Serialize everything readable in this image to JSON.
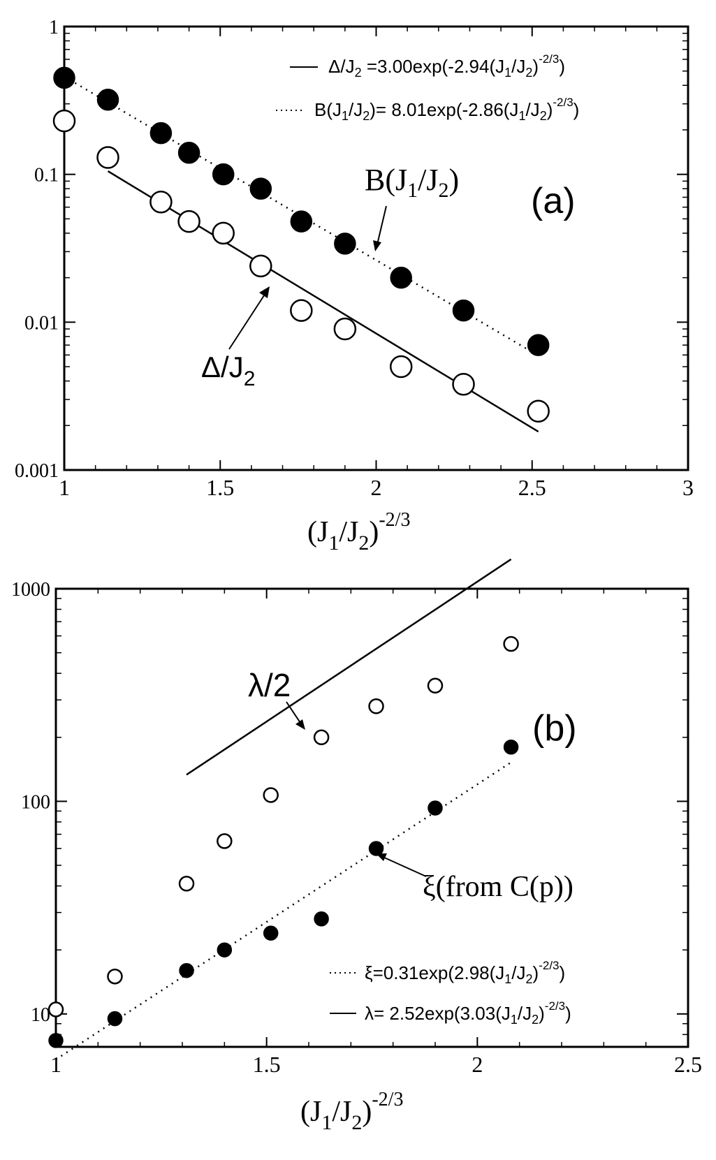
{
  "chart_data": [
    {
      "type": "scatter",
      "panel_label": "(a)",
      "xlabel": "(J1/J2)^-2/3",
      "ylabel": "",
      "xlim": [
        1,
        3
      ],
      "ylim": [
        0.001,
        1
      ],
      "y_scale": "log",
      "x_ticks": [
        "1",
        "1.5",
        "2",
        "2.5",
        "3"
      ],
      "y_ticks": [
        "0.001",
        "0.01",
        "0.1",
        "1"
      ],
      "legend_position": "top-right",
      "series": [
        {
          "name": "B(J1/J2)",
          "marker": "filled-circle",
          "x": [
            1.0,
            1.14,
            1.31,
            1.4,
            1.51,
            1.63,
            1.76,
            1.9,
            2.08,
            2.28,
            2.52
          ],
          "y": [
            0.45,
            0.32,
            0.19,
            0.14,
            0.1,
            0.08,
            0.048,
            0.034,
            0.02,
            0.012,
            0.007
          ]
        },
        {
          "name": "Δ/J2",
          "marker": "open-circle",
          "x": [
            1.0,
            1.14,
            1.31,
            1.4,
            1.51,
            1.63,
            1.76,
            1.9,
            2.08,
            2.28,
            2.52
          ],
          "y": [
            0.23,
            0.13,
            0.065,
            0.048,
            0.04,
            0.024,
            0.012,
            0.009,
            0.005,
            0.0038,
            0.0025
          ]
        }
      ],
      "fits": [
        {
          "series": "Δ/J2",
          "style": "solid",
          "amplitude": 3.0,
          "rate": -2.94,
          "x_range": [
            1.14,
            2.52
          ],
          "legend": {
            "pre": "Δ/J",
            "s1": "2",
            "mid": " =3.00exp(-2.94(J",
            "s2": "1",
            "mid2": "/J",
            "s3": "2",
            "end": ")",
            "sup": "-2/3",
            "close": ")"
          }
        },
        {
          "series": "B(J1/J2)",
          "style": "dotted",
          "amplitude": 8.01,
          "rate": -2.86,
          "x_range": [
            1.0,
            2.52
          ],
          "legend": {
            "pre": "B(J",
            "s1": "1",
            "mid": "/J",
            "s2": "2",
            "mid2": ")= 8.01exp(-2.86(J",
            "s3": "1",
            "mid3": "/J",
            "s4": "2",
            "end": ")",
            "sup": "-2/3",
            "close": ")"
          }
        }
      ],
      "annotations": {
        "B": {
          "pre": "B(J",
          "sub1": "1",
          "mid": "/J",
          "sub2": "2",
          "end": ")"
        },
        "delta": {
          "pre": "Δ/J",
          "sub": "2"
        }
      }
    },
    {
      "type": "scatter",
      "panel_label": "(b)",
      "xlabel": "(J1/J2)^-2/3",
      "ylabel": "",
      "xlim": [
        1,
        2.5
      ],
      "ylim": [
        7,
        1000
      ],
      "y_scale": "log",
      "x_ticks": [
        "1",
        "1.5",
        "2",
        "2.5"
      ],
      "y_ticks": [
        "10",
        "100",
        "1000"
      ],
      "legend_position": "bottom-right",
      "series": [
        {
          "name": "λ/2",
          "marker": "open-circle",
          "x": [
            1.0,
            1.14,
            1.31,
            1.4,
            1.51,
            1.63,
            1.76,
            1.9,
            2.08
          ],
          "y": [
            10.5,
            15,
            41,
            65,
            107,
            200,
            280,
            350,
            550
          ]
        },
        {
          "name": "ξ(from C(p))",
          "marker": "filled-circle",
          "x": [
            1.0,
            1.14,
            1.31,
            1.4,
            1.51,
            1.63,
            1.76,
            1.9,
            2.08
          ],
          "y": [
            7.5,
            9.5,
            16,
            20,
            24,
            28,
            60,
            93,
            180
          ]
        }
      ],
      "fits": [
        {
          "series": "ξ(from C(p))",
          "style": "dotted",
          "amplitude": 0.31,
          "rate": 2.98,
          "x_range": [
            1.0,
            2.08
          ],
          "legend": {
            "pre": "ξ=0.31exp(2.98(J",
            "s1": "1",
            "mid": "/J",
            "s2": "2",
            "end": ")",
            "sup": "-2/3",
            "close": ")"
          }
        },
        {
          "series": "λ/2",
          "style": "solid",
          "amplitude": 2.52,
          "rate": 3.03,
          "x_range": [
            1.31,
            2.08
          ],
          "legend": {
            "pre": "λ= 2.52exp(3.03(J",
            "s1": "1",
            "mid": "/J",
            "s2": "2",
            "end": ")",
            "sup": "-2/3",
            "close": ")"
          }
        }
      ],
      "annotations": {
        "lambda": "λ/2",
        "xi": "ξ(from C(p))"
      }
    }
  ],
  "axis_label_parts": {
    "open": "(J",
    "sub1": "1",
    "mid": "/J",
    "sub2": "2",
    "close": ")",
    "sup": "-2/3"
  }
}
